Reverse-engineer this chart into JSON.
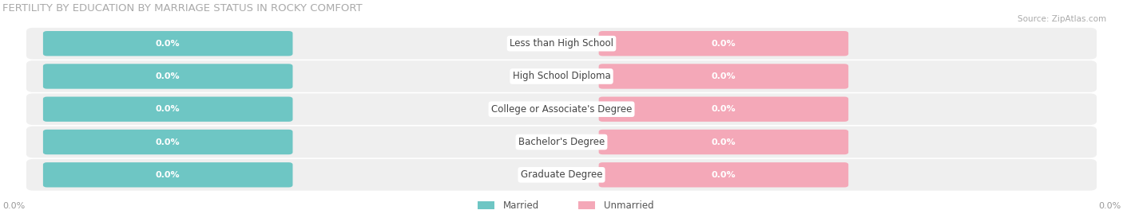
{
  "title": "FERTILITY BY EDUCATION BY MARRIAGE STATUS IN ROCKY COMFORT",
  "source": "Source: ZipAtlas.com",
  "categories": [
    "Less than High School",
    "High School Diploma",
    "College or Associate's Degree",
    "Bachelor's Degree",
    "Graduate Degree"
  ],
  "married_values": [
    0.0,
    0.0,
    0.0,
    0.0,
    0.0
  ],
  "unmarried_values": [
    0.0,
    0.0,
    0.0,
    0.0,
    0.0
  ],
  "married_color": "#6ec6c4",
  "unmarried_color": "#f4a8b8",
  "row_bg_color": "#efefef",
  "title_fontsize": 9.5,
  "label_fontsize": 8.5,
  "value_fontsize": 8,
  "background_color": "#ffffff"
}
